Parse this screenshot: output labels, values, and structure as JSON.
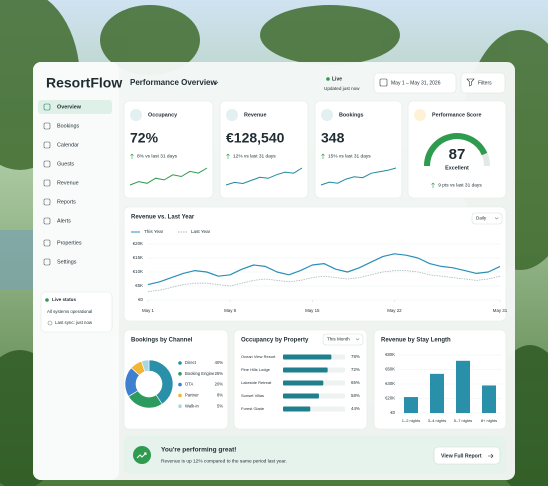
{
  "sidebar": {
    "logo": "ResortFlow",
    "nav": [
      "Overview",
      "Bookings",
      "Calendar",
      "Guests",
      "Revenue",
      "Reports",
      "Alerts",
      "Properties",
      "Settings"
    ],
    "status": {
      "title": "Live status",
      "message": "All systems operational",
      "sync": "Last sync: just now"
    }
  },
  "header": {
    "title": "Performance Overview",
    "live": "Live",
    "updated": "Updated just now",
    "date_range": "May 1 – May 31, 2026",
    "filters": "Filters"
  },
  "kpis": [
    {
      "label": "Occupancy",
      "value": "72%",
      "change": "8% vs last 31 days",
      "color": "#2e9b4f",
      "sparkline": [
        62,
        64,
        63,
        66,
        65,
        68,
        67,
        70,
        69,
        72
      ]
    },
    {
      "label": "Revenue",
      "value": "€128,540",
      "change": "12% vs last 31 days",
      "color": "#1f8a9e",
      "sparkline": [
        95,
        100,
        98,
        104,
        110,
        108,
        115,
        120,
        118,
        128
      ]
    },
    {
      "label": "Bookings",
      "value": "348",
      "change": "15% vs last 31 days",
      "color": "#1f8a9e",
      "sparkline": [
        290,
        300,
        296,
        310,
        318,
        315,
        330,
        335,
        340,
        348
      ]
    },
    {
      "label": "Performance Score",
      "value": "87",
      "rating": "Excellent",
      "change": "9 pts vs last 31 days",
      "score": 87,
      "range": [
        0,
        100
      ],
      "color": "#2e9b4f"
    }
  ],
  "charts": {
    "revenue": {
      "type": "line",
      "title": "Revenue vs. Last Year",
      "period": "Daily",
      "x": [
        1,
        2,
        3,
        4,
        5,
        6,
        7,
        8,
        9,
        10,
        11,
        12,
        13,
        14,
        15,
        16,
        17,
        18,
        19,
        20,
        21,
        22,
        23,
        24,
        25,
        26,
        27,
        28,
        29,
        30,
        31
      ],
      "xlim": [
        1,
        31
      ],
      "xticks": [
        {
          "value": 1,
          "label": "May 1"
        },
        {
          "value": 8,
          "label": "May 8"
        },
        {
          "value": 15,
          "label": "May 15"
        },
        {
          "value": 22,
          "label": "May 22"
        },
        {
          "value": 31,
          "label": "May 31"
        }
      ],
      "ylim": [
        0,
        20000
      ],
      "yticks": [
        {
          "value": 0,
          "label": "€0"
        },
        {
          "value": 5000,
          "label": "€5K"
        },
        {
          "value": 10000,
          "label": "€10K"
        },
        {
          "value": 15000,
          "label": "€15K"
        },
        {
          "value": 20000,
          "label": "€20K"
        }
      ],
      "series": [
        {
          "name": "This Year",
          "color": "#2a8fb8",
          "dashed": false,
          "values": [
            5500,
            6500,
            8000,
            9500,
            10500,
            10000,
            8500,
            9000,
            11000,
            12500,
            12000,
            10000,
            9000,
            10500,
            12500,
            13000,
            11000,
            10000,
            11500,
            13500,
            15500,
            16500,
            16000,
            15000,
            13000,
            12000,
            11500,
            10500,
            9500,
            10000,
            12000
          ]
        },
        {
          "name": "Last Year",
          "color": "#a9b8bf",
          "dashed": true,
          "values": [
            3000,
            3500,
            4500,
            5500,
            6000,
            6000,
            5500,
            5000,
            6000,
            7000,
            7500,
            7000,
            6500,
            7000,
            8000,
            8500,
            8000,
            7500,
            8000,
            9000,
            10000,
            10500,
            10500,
            10000,
            9000,
            8500,
            8000,
            7500,
            7000,
            7500,
            8500
          ]
        }
      ]
    },
    "channels": {
      "type": "donut",
      "title": "Bookings by Channel",
      "categories": [
        "Direct",
        "Booking Engine",
        "OTA",
        "Partner",
        "Walk-in"
      ],
      "values": [
        40,
        25,
        20,
        8,
        5
      ],
      "value_labels": [
        "40%",
        "25%",
        "20%",
        "8%",
        "5%"
      ],
      "colors": [
        "#2a8fa8",
        "#2e9b5e",
        "#3f7fd0",
        "#f2b632",
        "#a7d8e0"
      ]
    },
    "occupancy": {
      "type": "hbar",
      "title": "Occupancy by Property",
      "period": "This Month",
      "categories": [
        "Ocean View Resort",
        "Pine Hills Lodge",
        "Lakeside Retreat",
        "Sunset Villas",
        "Forest Glade"
      ],
      "values": [
        78,
        72,
        65,
        58,
        44
      ],
      "value_labels": [
        "78%",
        "72%",
        "65%",
        "58%",
        "44%"
      ],
      "xlim": [
        0,
        100
      ],
      "color": "#1f7f8c"
    },
    "stay": {
      "type": "bar",
      "title": "Revenue by Stay Length",
      "categories": [
        "1–2 nights",
        "3–4 nights",
        "5–7 nights",
        "8+ nights"
      ],
      "values": [
        22000,
        54000,
        72000,
        38000
      ],
      "ylim": [
        0,
        80000
      ],
      "yticks": [
        {
          "value": 0,
          "label": "€0"
        },
        {
          "value": 20000,
          "label": "€20K"
        },
        {
          "value": 40000,
          "label": "€40K"
        },
        {
          "value": 60000,
          "label": "€60K"
        },
        {
          "value": 80000,
          "label": "€80K"
        }
      ],
      "color": "#2a8fa8"
    }
  },
  "banner": {
    "title": "You're performing great!",
    "message": "Revenue is up 12% compared to the same period last year.",
    "button": "View Full Report"
  }
}
